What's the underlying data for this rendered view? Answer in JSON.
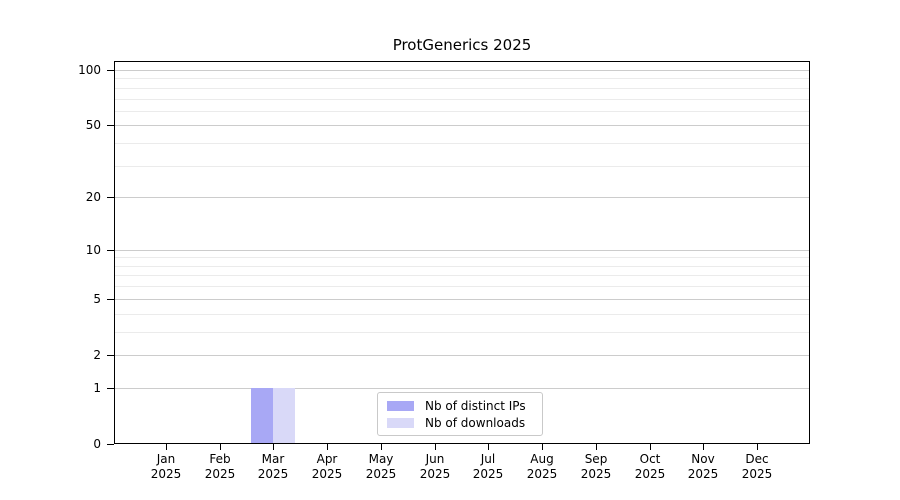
{
  "chart_data": {
    "type": "bar",
    "title": "ProtGenerics 2025",
    "categories": [
      {
        "month": "Jan",
        "year": "2025"
      },
      {
        "month": "Feb",
        "year": "2025"
      },
      {
        "month": "Mar",
        "year": "2025"
      },
      {
        "month": "Apr",
        "year": "2025"
      },
      {
        "month": "May",
        "year": "2025"
      },
      {
        "month": "Jun",
        "year": "2025"
      },
      {
        "month": "Jul",
        "year": "2025"
      },
      {
        "month": "Aug",
        "year": "2025"
      },
      {
        "month": "Sep",
        "year": "2025"
      },
      {
        "month": "Oct",
        "year": "2025"
      },
      {
        "month": "Nov",
        "year": "2025"
      },
      {
        "month": "Dec",
        "year": "2025"
      }
    ],
    "series": [
      {
        "name": "Nb of distinct IPs",
        "color": "#a8a8f5",
        "values": [
          0,
          0,
          1,
          0,
          0,
          0,
          0,
          0,
          0,
          0,
          0,
          0
        ]
      },
      {
        "name": "Nb of downloads",
        "color": "#d9d9f8",
        "values": [
          0,
          0,
          1,
          0,
          0,
          0,
          0,
          0,
          0,
          0,
          0,
          0
        ]
      }
    ],
    "y_axis": {
      "scale": "log1p",
      "range": [
        0,
        100
      ],
      "major_ticks": [
        0,
        1,
        2,
        5,
        10,
        20,
        50,
        100
      ],
      "minor_gridlines": [
        3,
        4,
        6,
        7,
        8,
        9,
        30,
        40,
        60,
        70,
        80,
        90
      ]
    },
    "grid": "horizontal",
    "legend": {
      "position": "bottom-center"
    }
  },
  "colors": {
    "background": "#ffffff",
    "axis": "#000000",
    "grid_major": "#cccccc",
    "grid_minor": "#ebebeb",
    "legend_border": "#c9c9c9",
    "series_distinct_ips": "#a8a8f5",
    "series_downloads": "#d9d9f8"
  }
}
